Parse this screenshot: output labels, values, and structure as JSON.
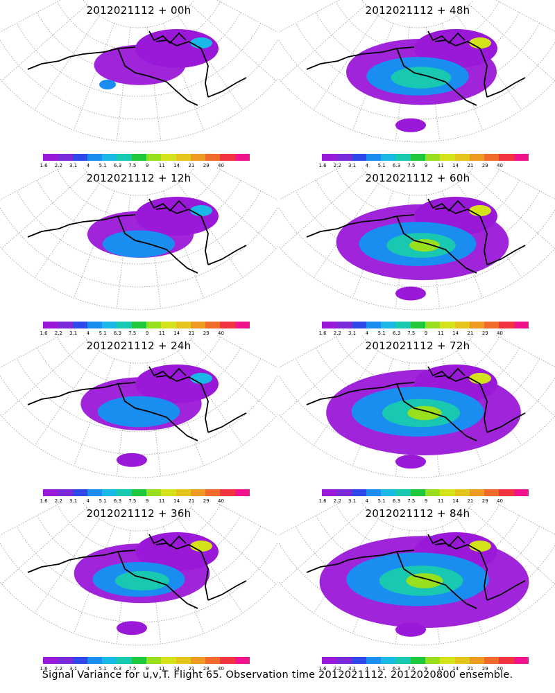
{
  "figure": {
    "caption": "Signal Variance for u,v,T. Flight 65. Observation time 2012021112. 2012020800 ensemble."
  },
  "colorbar": {
    "labels": [
      "1.6",
      "2.2",
      "3.1",
      "4",
      "5.1",
      "6.3",
      "7.5",
      "9",
      "11",
      "14",
      "21",
      "29",
      "40"
    ],
    "colors": [
      "#9a18d8",
      "#7a2ad8",
      "#2f48e8",
      "#1a8ef0",
      "#19b8e6",
      "#19c8b0",
      "#1fc83a",
      "#98e01e",
      "#d4e21c",
      "#e6c41e",
      "#ee9a20",
      "#f06a2a",
      "#f03440",
      "#f0148c"
    ]
  },
  "panels": [
    {
      "id": "p00",
      "title": "2012021112 + 00h",
      "intensity": 0.15
    },
    {
      "id": "p48",
      "title": "2012021112 + 48h",
      "intensity": 0.55
    },
    {
      "id": "p12",
      "title": "2012021112 + 12h",
      "intensity": 0.25
    },
    {
      "id": "p60",
      "title": "2012021112 + 60h",
      "intensity": 0.7
    },
    {
      "id": "p24",
      "title": "2012021112 + 24h",
      "intensity": 0.35
    },
    {
      "id": "p72",
      "title": "2012021112 + 72h",
      "intensity": 0.85
    },
    {
      "id": "p36",
      "title": "2012021112 + 36h",
      "intensity": 0.45
    },
    {
      "id": "p84",
      "title": "2012021112 + 84h",
      "intensity": 0.95
    }
  ]
}
